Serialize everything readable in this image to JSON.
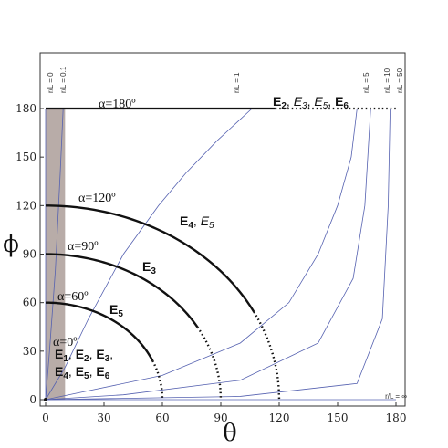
{
  "chart_data": {
    "type": "line",
    "xlabel": "θ",
    "ylabel": "ϕ",
    "xlim": [
      0,
      180
    ],
    "ylim": [
      0,
      180
    ],
    "xticks": [
      0,
      30,
      60,
      90,
      120,
      150,
      180
    ],
    "yticks": [
      0,
      30,
      60,
      90,
      120,
      150,
      180
    ],
    "grid": false,
    "shaded_region": {
      "x": [
        0,
        10
      ],
      "y": [
        0,
        180
      ],
      "color": "#b8aca8"
    },
    "rl_curves": [
      {
        "label": "r/L = 0",
        "points": [
          [
            0,
            0
          ],
          [
            0,
            180
          ]
        ]
      },
      {
        "label": "r/L = 0.1",
        "points": [
          [
            0,
            0
          ],
          [
            2,
            30
          ],
          [
            5,
            80
          ],
          [
            7.5,
            140
          ],
          [
            9,
            180
          ]
        ]
      },
      {
        "label": "r/L = 1",
        "points": [
          [
            0,
            0
          ],
          [
            10,
            20
          ],
          [
            22,
            50
          ],
          [
            40,
            90
          ],
          [
            58,
            120
          ],
          [
            72,
            140
          ],
          [
            88,
            160
          ],
          [
            106,
            180
          ]
        ]
      },
      {
        "label": "r/L = 5",
        "points": [
          [
            0,
            0
          ],
          [
            20,
            5
          ],
          [
            60,
            15
          ],
          [
            100,
            35
          ],
          [
            125,
            60
          ],
          [
            140,
            90
          ],
          [
            150,
            120
          ],
          [
            157,
            150
          ],
          [
            160,
            180
          ]
        ]
      },
      {
        "label": "r/L = 10",
        "points": [
          [
            0,
            0
          ],
          [
            40,
            3
          ],
          [
            100,
            12
          ],
          [
            140,
            35
          ],
          [
            158,
            75
          ],
          [
            164,
            120
          ],
          [
            167,
            180
          ]
        ]
      },
      {
        "label": "r/L = 50",
        "points": [
          [
            0,
            0
          ],
          [
            100,
            2
          ],
          [
            160,
            10
          ],
          [
            173,
            50
          ],
          [
            176,
            120
          ],
          [
            177,
            180
          ]
        ]
      },
      {
        "label": "r/L = ∞",
        "points": [
          [
            0,
            0
          ],
          [
            180,
            0
          ]
        ]
      }
    ],
    "alpha_curves": [
      {
        "label": "α=0º",
        "points": [
          [
            0,
            0
          ],
          [
            0,
            0
          ]
        ]
      },
      {
        "label": "α=60º",
        "radius": 60,
        "solid_until": 55,
        "dotted_until": 60
      },
      {
        "label": "α=90º",
        "radius": 90,
        "solid_until": 78,
        "dotted_until": 90
      },
      {
        "label": "α=120º",
        "radius": 120,
        "solid_until": 107,
        "dotted_until": 120
      },
      {
        "label": "α=180º",
        "points": [
          [
            0,
            180
          ],
          [
            180,
            180
          ]
        ],
        "solid_until": 118
      }
    ],
    "annotations": [
      {
        "text": "α=180º",
        "at": [
          28,
          184
        ]
      },
      {
        "text": "α=120º",
        "at": [
          17,
          124
        ]
      },
      {
        "text": "α=90º",
        "at": [
          11,
          94
        ]
      },
      {
        "text": "α=60º",
        "at": [
          6,
          64
        ]
      },
      {
        "text": "α=0º",
        "at": [
          4,
          37
        ]
      },
      {
        "text": "E",
        "sub": "2",
        "bold": true
      },
      {
        "text": "E",
        "sub": "3",
        "bold": false
      },
      {
        "text": "E",
        "sub": "5",
        "bold": false
      },
      {
        "text": "E",
        "sub": "6",
        "bold": true
      },
      {
        "text": "E",
        "sub": "4",
        "bold": true
      },
      {
        "text": "E",
        "sub": "5",
        "bold": false
      },
      {
        "text": "E",
        "sub": "3",
        "bold": true
      },
      {
        "text": "E",
        "sub": "5",
        "bold": true
      },
      {
        "text": "E",
        "sub": "1",
        "bold": true
      },
      {
        "text": "E",
        "sub": "2",
        "bold": true
      },
      {
        "text": "E",
        "sub": "3",
        "bold": true
      },
      {
        "text": "E",
        "sub": "4",
        "bold": true
      },
      {
        "text": "E",
        "sub": "5",
        "bold": true
      },
      {
        "text": "E",
        "sub": "6",
        "bold": true
      }
    ]
  }
}
